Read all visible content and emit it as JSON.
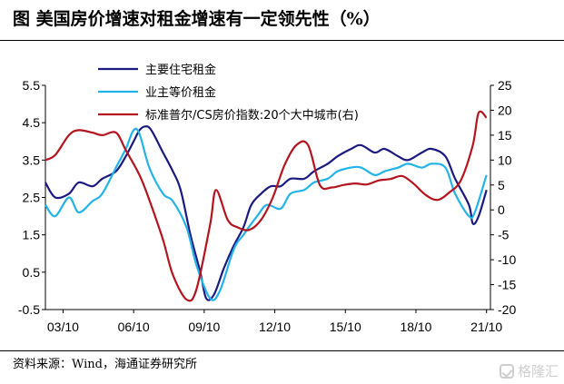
{
  "title": "图  美国房价增速对租金增速有一定领先性（%）",
  "source": "资料来源：Wind，海通证券研究所",
  "watermark": "格隆汇",
  "chart_data": {
    "type": "line",
    "x_ticks": [
      "03/10",
      "06/10",
      "09/10",
      "12/10",
      "15/10",
      "18/10",
      "21/10"
    ],
    "xlim": [
      "2003-01",
      "2021-12"
    ],
    "y_left": {
      "lim": [
        -0.5,
        5.5
      ],
      "ticks": [
        "5.5",
        "4.5",
        "3.5",
        "2.5",
        "1.5",
        "0.5",
        "-0.5"
      ]
    },
    "y_right": {
      "lim": [
        -20,
        25
      ],
      "ticks": [
        "25",
        "20",
        "15",
        "10",
        "5",
        "0",
        "-5",
        "-10",
        "-15",
        "-20"
      ]
    },
    "legend_position": "top-center",
    "series": [
      {
        "name": "主要住宅租金",
        "color": "#1a1a80",
        "axis": "left",
        "points": [
          [
            "2003-01",
            2.9
          ],
          [
            "2003-06",
            2.5
          ],
          [
            "2004-01",
            2.6
          ],
          [
            "2004-06",
            2.9
          ],
          [
            "2005-01",
            2.8
          ],
          [
            "2005-06",
            3.0
          ],
          [
            "2006-01",
            3.2
          ],
          [
            "2006-06",
            3.6
          ],
          [
            "2006-10",
            4.0
          ],
          [
            "2007-01",
            4.3
          ],
          [
            "2007-04",
            4.4
          ],
          [
            "2007-07",
            4.3
          ],
          [
            "2008-01",
            3.7
          ],
          [
            "2008-06",
            3.2
          ],
          [
            "2008-10",
            2.7
          ],
          [
            "2009-03",
            1.5
          ],
          [
            "2009-08",
            0.5
          ],
          [
            "2009-11",
            -0.2
          ],
          [
            "2010-03",
            -0.1
          ],
          [
            "2010-08",
            0.6
          ],
          [
            "2011-01",
            1.2
          ],
          [
            "2011-06",
            1.7
          ],
          [
            "2011-10",
            2.3
          ],
          [
            "2012-03",
            2.6
          ],
          [
            "2012-08",
            2.8
          ],
          [
            "2013-01",
            2.8
          ],
          [
            "2013-06",
            3.0
          ],
          [
            "2014-01",
            3.0
          ],
          [
            "2014-06",
            3.2
          ],
          [
            "2015-01",
            3.4
          ],
          [
            "2015-06",
            3.6
          ],
          [
            "2016-01",
            3.8
          ],
          [
            "2016-06",
            3.9
          ],
          [
            "2017-01",
            3.7
          ],
          [
            "2017-06",
            3.8
          ],
          [
            "2018-01",
            3.6
          ],
          [
            "2018-06",
            3.5
          ],
          [
            "2019-01",
            3.7
          ],
          [
            "2019-06",
            3.8
          ],
          [
            "2020-01",
            3.6
          ],
          [
            "2020-06",
            3.0
          ],
          [
            "2021-01",
            2.3
          ],
          [
            "2021-03",
            1.8
          ],
          [
            "2021-06",
            2.0
          ],
          [
            "2021-10",
            2.7
          ]
        ]
      },
      {
        "name": "业主等价租金",
        "color": "#22b3e8",
        "axis": "left",
        "points": [
          [
            "2003-01",
            2.3
          ],
          [
            "2003-06",
            2.0
          ],
          [
            "2004-01",
            2.5
          ],
          [
            "2004-06",
            2.1
          ],
          [
            "2005-01",
            2.4
          ],
          [
            "2005-06",
            2.6
          ],
          [
            "2006-01",
            3.3
          ],
          [
            "2006-06",
            3.8
          ],
          [
            "2006-10",
            4.3
          ],
          [
            "2007-01",
            4.2
          ],
          [
            "2007-06",
            3.3
          ],
          [
            "2008-01",
            2.6
          ],
          [
            "2008-06",
            2.4
          ],
          [
            "2009-01",
            1.7
          ],
          [
            "2009-06",
            0.7
          ],
          [
            "2010-01",
            -0.2
          ],
          [
            "2010-06",
            0.0
          ],
          [
            "2011-01",
            1.1
          ],
          [
            "2011-06",
            1.5
          ],
          [
            "2012-01",
            2.0
          ],
          [
            "2012-06",
            2.3
          ],
          [
            "2013-01",
            2.2
          ],
          [
            "2013-06",
            2.6
          ],
          [
            "2014-01",
            2.7
          ],
          [
            "2014-06",
            2.9
          ],
          [
            "2015-01",
            3.0
          ],
          [
            "2015-06",
            3.2
          ],
          [
            "2016-01",
            3.3
          ],
          [
            "2016-06",
            3.3
          ],
          [
            "2017-01",
            3.1
          ],
          [
            "2017-06",
            3.2
          ],
          [
            "2018-01",
            3.3
          ],
          [
            "2018-06",
            3.4
          ],
          [
            "2019-01",
            3.3
          ],
          [
            "2019-06",
            3.4
          ],
          [
            "2020-01",
            3.3
          ],
          [
            "2020-06",
            2.6
          ],
          [
            "2021-01",
            2.0
          ],
          [
            "2021-04",
            2.1
          ],
          [
            "2021-10",
            3.1
          ]
        ]
      },
      {
        "name": "标准普尔/CS房价指数:20个大中城市(右)",
        "color": "#b4141e",
        "axis": "right",
        "points": [
          [
            "2003-01",
            10
          ],
          [
            "2003-06",
            11
          ],
          [
            "2004-01",
            15
          ],
          [
            "2004-06",
            16
          ],
          [
            "2005-01",
            15.5
          ],
          [
            "2005-06",
            15
          ],
          [
            "2006-01",
            15.5
          ],
          [
            "2006-06",
            12
          ],
          [
            "2007-01",
            7
          ],
          [
            "2007-06",
            2
          ],
          [
            "2008-01",
            -6
          ],
          [
            "2008-06",
            -13
          ],
          [
            "2009-01",
            -18
          ],
          [
            "2009-06",
            -16
          ],
          [
            "2010-01",
            -3
          ],
          [
            "2010-04",
            4
          ],
          [
            "2010-10",
            -2
          ],
          [
            "2011-03",
            -3.5
          ],
          [
            "2011-09",
            -4
          ],
          [
            "2012-03",
            -2
          ],
          [
            "2012-09",
            2.5
          ],
          [
            "2013-03",
            9
          ],
          [
            "2013-09",
            13
          ],
          [
            "2014-03",
            13
          ],
          [
            "2014-09",
            5
          ],
          [
            "2015-03",
            4.5
          ],
          [
            "2015-09",
            5
          ],
          [
            "2016-03",
            5.3
          ],
          [
            "2016-09",
            5.1
          ],
          [
            "2017-03",
            5.9
          ],
          [
            "2017-09",
            6.2
          ],
          [
            "2018-03",
            6.8
          ],
          [
            "2018-09",
            5.2
          ],
          [
            "2019-03",
            3
          ],
          [
            "2019-09",
            2
          ],
          [
            "2020-03",
            3.5
          ],
          [
            "2020-09",
            6
          ],
          [
            "2021-03",
            13
          ],
          [
            "2021-06",
            19.5
          ],
          [
            "2021-10",
            18.5
          ]
        ]
      }
    ]
  }
}
